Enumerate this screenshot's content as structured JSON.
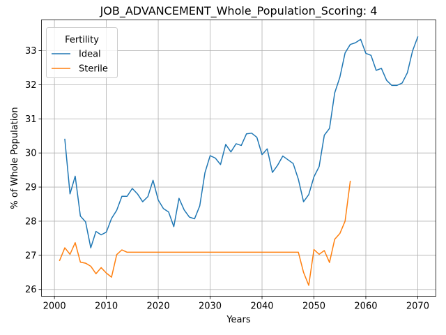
{
  "chart_data": {
    "type": "line",
    "title": "JOB_ADVANCEMENT_Whole_Population_Scoring: 4",
    "xlabel": "Years",
    "ylabel": "% of Whole Population",
    "xlim": [
      1997.5,
      2073.5
    ],
    "ylim": [
      25.8,
      33.9
    ],
    "xticks": [
      2000,
      2010,
      2020,
      2030,
      2040,
      2050,
      2060,
      2070
    ],
    "yticks": [
      26,
      27,
      28,
      29,
      30,
      31,
      32,
      33
    ],
    "grid": true,
    "legend": {
      "title": "Fertility",
      "placement": "top-left"
    },
    "series": [
      {
        "name": "Ideal",
        "color": "#1f77b4",
        "points": [
          [
            2002,
            30.4
          ],
          [
            2003,
            28.8
          ],
          [
            2004,
            29.32
          ],
          [
            2005,
            28.15
          ],
          [
            2006,
            27.98
          ],
          [
            2007,
            27.22
          ],
          [
            2008,
            27.7
          ],
          [
            2009,
            27.6
          ],
          [
            2010,
            27.68
          ],
          [
            2011,
            28.08
          ],
          [
            2012,
            28.32
          ],
          [
            2013,
            28.73
          ],
          [
            2014,
            28.73
          ],
          [
            2015,
            28.96
          ],
          [
            2016,
            28.8
          ],
          [
            2017,
            28.57
          ],
          [
            2018,
            28.72
          ],
          [
            2019,
            29.2
          ],
          [
            2020,
            28.62
          ],
          [
            2021,
            28.37
          ],
          [
            2022,
            28.27
          ],
          [
            2023,
            27.84
          ],
          [
            2024,
            28.67
          ],
          [
            2025,
            28.33
          ],
          [
            2026,
            28.12
          ],
          [
            2027,
            28.07
          ],
          [
            2028,
            28.45
          ],
          [
            2029,
            29.42
          ],
          [
            2030,
            29.92
          ],
          [
            2031,
            29.85
          ],
          [
            2032,
            29.66
          ],
          [
            2033,
            30.25
          ],
          [
            2034,
            30.03
          ],
          [
            2035,
            30.27
          ],
          [
            2036,
            30.22
          ],
          [
            2037,
            30.56
          ],
          [
            2038,
            30.58
          ],
          [
            2039,
            30.46
          ],
          [
            2040,
            29.95
          ],
          [
            2041,
            30.12
          ],
          [
            2042,
            29.43
          ],
          [
            2043,
            29.64
          ],
          [
            2044,
            29.91
          ],
          [
            2045,
            29.8
          ],
          [
            2046,
            29.69
          ],
          [
            2047,
            29.23
          ],
          [
            2048,
            28.57
          ],
          [
            2049,
            28.78
          ],
          [
            2050,
            29.3
          ],
          [
            2051,
            29.6
          ],
          [
            2052,
            30.52
          ],
          [
            2053,
            30.72
          ],
          [
            2054,
            31.76
          ],
          [
            2055,
            32.22
          ],
          [
            2056,
            32.93
          ],
          [
            2057,
            33.18
          ],
          [
            2058,
            33.23
          ],
          [
            2059,
            33.33
          ],
          [
            2060,
            32.92
          ],
          [
            2061,
            32.86
          ],
          [
            2062,
            32.42
          ],
          [
            2063,
            32.48
          ],
          [
            2064,
            32.13
          ],
          [
            2065,
            31.98
          ],
          [
            2066,
            31.98
          ],
          [
            2067,
            32.05
          ],
          [
            2068,
            32.35
          ],
          [
            2069,
            32.99
          ],
          [
            2070,
            33.4
          ]
        ]
      },
      {
        "name": "Sterile",
        "color": "#ff7f0e",
        "points": [
          [
            2001,
            26.85
          ],
          [
            2002,
            27.22
          ],
          [
            2003,
            27.03
          ],
          [
            2004,
            27.37
          ],
          [
            2005,
            26.8
          ],
          [
            2006,
            26.77
          ],
          [
            2007,
            26.68
          ],
          [
            2008,
            26.46
          ],
          [
            2009,
            26.64
          ],
          [
            2010,
            26.48
          ],
          [
            2011,
            26.36
          ],
          [
            2012,
            27.02
          ],
          [
            2013,
            27.16
          ],
          [
            2014,
            27.09
          ],
          [
            2015,
            27.09
          ],
          [
            2016,
            27.09
          ],
          [
            2017,
            27.09
          ],
          [
            2018,
            27.09
          ],
          [
            2019,
            27.09
          ],
          [
            2020,
            27.09
          ],
          [
            2021,
            27.09
          ],
          [
            2022,
            27.09
          ],
          [
            2023,
            27.09
          ],
          [
            2024,
            27.09
          ],
          [
            2025,
            27.09
          ],
          [
            2026,
            27.09
          ],
          [
            2027,
            27.09
          ],
          [
            2028,
            27.09
          ],
          [
            2029,
            27.09
          ],
          [
            2030,
            27.09
          ],
          [
            2031,
            27.09
          ],
          [
            2032,
            27.09
          ],
          [
            2033,
            27.09
          ],
          [
            2034,
            27.09
          ],
          [
            2035,
            27.09
          ],
          [
            2036,
            27.09
          ],
          [
            2037,
            27.09
          ],
          [
            2038,
            27.09
          ],
          [
            2039,
            27.09
          ],
          [
            2040,
            27.09
          ],
          [
            2041,
            27.09
          ],
          [
            2042,
            27.09
          ],
          [
            2043,
            27.09
          ],
          [
            2044,
            27.09
          ],
          [
            2045,
            27.09
          ],
          [
            2046,
            27.09
          ],
          [
            2047,
            27.09
          ],
          [
            2048,
            26.5
          ],
          [
            2049,
            26.12
          ],
          [
            2050,
            27.17
          ],
          [
            2051,
            27.03
          ],
          [
            2052,
            27.14
          ],
          [
            2053,
            26.79
          ],
          [
            2054,
            27.47
          ],
          [
            2055,
            27.64
          ],
          [
            2056,
            28.0
          ],
          [
            2057,
            29.17
          ]
        ]
      }
    ]
  }
}
